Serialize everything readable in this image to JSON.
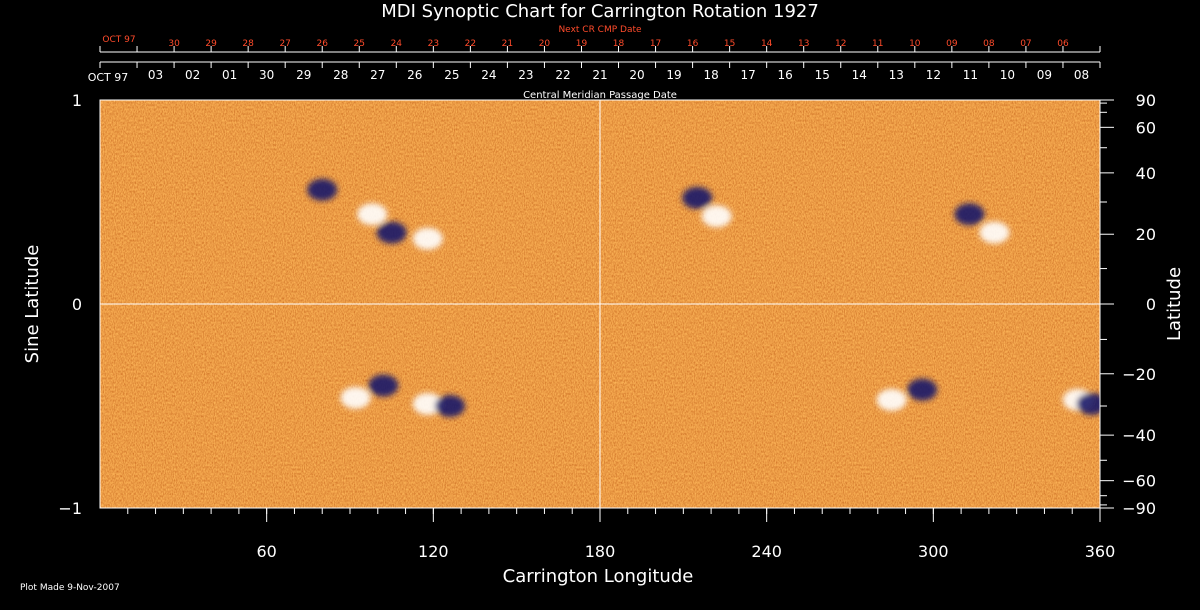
{
  "title": "MDI Synoptic Chart for Carrington Rotation 1927",
  "footer": "Plot Made  9-Nov-2007",
  "colors": {
    "background": "#000000",
    "map_base": "#d9501a",
    "map_bright": "#f0a030",
    "positive_field": "#ffffff",
    "negative_field": "#1a1a6a",
    "axis": "#ffffff",
    "next_cmp": "#ff4b2b"
  },
  "chart_data": {
    "type": "heatmap",
    "title": "MDI Synoptic Chart for Carrington Rotation 1927",
    "xlabel": "Carrington Longitude",
    "ylabel_left": "Sine Latitude",
    "ylabel_right": "Latitude",
    "xlim": [
      0,
      360
    ],
    "ylim_sine": [
      -1,
      1
    ],
    "x_ticks": [
      60,
      120,
      180,
      240,
      300,
      360
    ],
    "y_ticks_left": [
      {
        "value": 1,
        "label": "1"
      },
      {
        "value": 0,
        "label": "0"
      },
      {
        "value": -1,
        "label": "−1"
      }
    ],
    "y_ticks_right_deg": [
      {
        "deg": 90,
        "label": "90"
      },
      {
        "deg": 60,
        "label": "60"
      },
      {
        "deg": 40,
        "label": "40"
      },
      {
        "deg": 20,
        "label": "20"
      },
      {
        "deg": 0,
        "label": "0"
      },
      {
        "deg": -20,
        "label": "−20"
      },
      {
        "deg": -40,
        "label": "−40"
      },
      {
        "deg": -60,
        "label": "−60"
      },
      {
        "deg": -90,
        "label": "−90"
      }
    ],
    "reference_lines": {
      "longitude": 180,
      "sine_latitude": 0
    },
    "top_axis": {
      "label": "Central Meridian Passage Date",
      "start_label": "OCT 97",
      "dates": [
        "03",
        "02",
        "01",
        "30",
        "29",
        "28",
        "27",
        "26",
        "25",
        "24",
        "23",
        "22",
        "21",
        "20",
        "19",
        "18",
        "17",
        "16",
        "15",
        "14",
        "13",
        "12",
        "11",
        "10",
        "09",
        "08"
      ]
    },
    "next_cmp_axis": {
      "label": "Next CR CMP Date",
      "start_label": "OCT 97",
      "dates": [
        "30",
        "29",
        "28",
        "27",
        "26",
        "25",
        "24",
        "23",
        "22",
        "21",
        "20",
        "19",
        "18",
        "17",
        "16",
        "15",
        "14",
        "13",
        "12",
        "11",
        "10",
        "09",
        "08",
        "07",
        "06"
      ]
    },
    "active_regions": [
      {
        "lon": 98,
        "sinlat": 0.44,
        "polarity": "positive"
      },
      {
        "lon": 118,
        "sinlat": 0.32,
        "polarity": "positive"
      },
      {
        "lon": 80,
        "sinlat": 0.56,
        "polarity": "negative"
      },
      {
        "lon": 105,
        "sinlat": 0.35,
        "polarity": "negative"
      },
      {
        "lon": 222,
        "sinlat": 0.43,
        "polarity": "positive"
      },
      {
        "lon": 215,
        "sinlat": 0.52,
        "polarity": "negative"
      },
      {
        "lon": 322,
        "sinlat": 0.35,
        "polarity": "positive"
      },
      {
        "lon": 313,
        "sinlat": 0.44,
        "polarity": "negative"
      },
      {
        "lon": 92,
        "sinlat": -0.46,
        "polarity": "positive"
      },
      {
        "lon": 102,
        "sinlat": -0.4,
        "polarity": "negative"
      },
      {
        "lon": 118,
        "sinlat": -0.49,
        "polarity": "positive"
      },
      {
        "lon": 126,
        "sinlat": -0.5,
        "polarity": "negative"
      },
      {
        "lon": 285,
        "sinlat": -0.47,
        "polarity": "positive"
      },
      {
        "lon": 296,
        "sinlat": -0.42,
        "polarity": "negative"
      },
      {
        "lon": 352,
        "sinlat": -0.47,
        "polarity": "positive"
      },
      {
        "lon": 357,
        "sinlat": -0.49,
        "polarity": "negative"
      }
    ]
  }
}
